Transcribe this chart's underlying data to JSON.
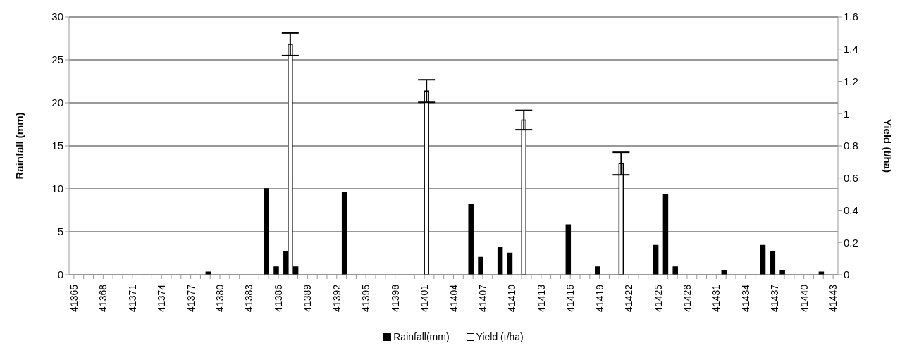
{
  "chart_data": {
    "type": "bar",
    "ylabel": "Rainfall (mm)",
    "y2label": "Yield (t/ha)",
    "categories": [
      "41365",
      null,
      null,
      "41368",
      null,
      null,
      "41371",
      null,
      null,
      "41374",
      null,
      null,
      "41377",
      null,
      null,
      "41380",
      null,
      null,
      "41383",
      null,
      null,
      "41386",
      null,
      null,
      "41389",
      null,
      null,
      "41392",
      null,
      null,
      "41395",
      null,
      null,
      "41398",
      null,
      null,
      "41401",
      null,
      null,
      "41404",
      null,
      null,
      "41407",
      null,
      null,
      "41410",
      null,
      null,
      "41413",
      null,
      null,
      "41416",
      null,
      null,
      "41419",
      null,
      null,
      "41422",
      null,
      null,
      "41425",
      null,
      null,
      "41428",
      null,
      null,
      "41431",
      null,
      null,
      "41434",
      null,
      null,
      "41437",
      null,
      null,
      "41440",
      null,
      null,
      "41443"
    ],
    "series": [
      {
        "name": "Rainfall(mm)",
        "color": "#000000",
        "values": [
          0,
          0,
          0,
          0,
          0,
          0,
          0,
          0,
          0,
          0,
          0,
          0,
          0,
          0,
          0.3,
          0,
          0,
          0,
          0,
          0,
          10,
          0.9,
          2.7,
          0.9,
          0,
          0,
          0,
          0,
          9.6,
          0,
          0,
          0,
          0,
          0,
          0,
          0,
          0,
          0,
          0,
          0,
          0,
          8.2,
          2.0,
          0,
          3.2,
          2.5,
          0,
          0,
          0,
          0,
          0,
          5.8,
          0,
          0,
          0.9,
          0,
          0,
          0,
          0,
          0,
          3.4,
          9.3,
          0.9,
          0,
          0,
          0,
          0,
          0.5,
          0,
          0,
          0,
          3.4,
          2.7,
          0.5,
          0,
          0,
          0,
          0.3,
          0
        ]
      },
      {
        "name": "Yield (t/ha)",
        "color": "#ffffff",
        "axis": "y2",
        "values": [
          null,
          null,
          null,
          null,
          null,
          null,
          null,
          null,
          null,
          null,
          null,
          null,
          null,
          null,
          null,
          null,
          null,
          null,
          null,
          null,
          null,
          null,
          1.43,
          null,
          null,
          null,
          null,
          null,
          null,
          null,
          null,
          null,
          null,
          null,
          null,
          null,
          1.14,
          null,
          null,
          null,
          null,
          null,
          null,
          null,
          null,
          null,
          0.96,
          null,
          null,
          null,
          null,
          null,
          null,
          null,
          null,
          null,
          0.69,
          null,
          null,
          null,
          null,
          null,
          null,
          null,
          null,
          null,
          null,
          null,
          null,
          null,
          null,
          null,
          null,
          null,
          null,
          null,
          null,
          null,
          null
        ],
        "errors": [
          null,
          null,
          null,
          null,
          null,
          null,
          null,
          null,
          null,
          null,
          null,
          null,
          null,
          null,
          null,
          null,
          null,
          null,
          null,
          null,
          null,
          null,
          0.07,
          null,
          null,
          null,
          null,
          null,
          null,
          null,
          null,
          null,
          null,
          null,
          null,
          null,
          0.07,
          null,
          null,
          null,
          null,
          null,
          null,
          null,
          null,
          null,
          0.06,
          null,
          null,
          null,
          null,
          null,
          null,
          null,
          null,
          null,
          0.07,
          null,
          null,
          null,
          null,
          null,
          null,
          null,
          null,
          null,
          null,
          null,
          null,
          null,
          null,
          null,
          null,
          null,
          null,
          null,
          null,
          null,
          null
        ]
      }
    ],
    "ylim": [
      0,
      30
    ],
    "yticks": [
      0,
      5,
      10,
      15,
      20,
      25,
      30
    ],
    "y2lim": [
      0,
      1.6
    ],
    "y2ticks": [
      0,
      0.2,
      0.4,
      0.6,
      0.8,
      1,
      1.2,
      1.4,
      1.6
    ],
    "grid": "y",
    "legend": "bottom"
  }
}
